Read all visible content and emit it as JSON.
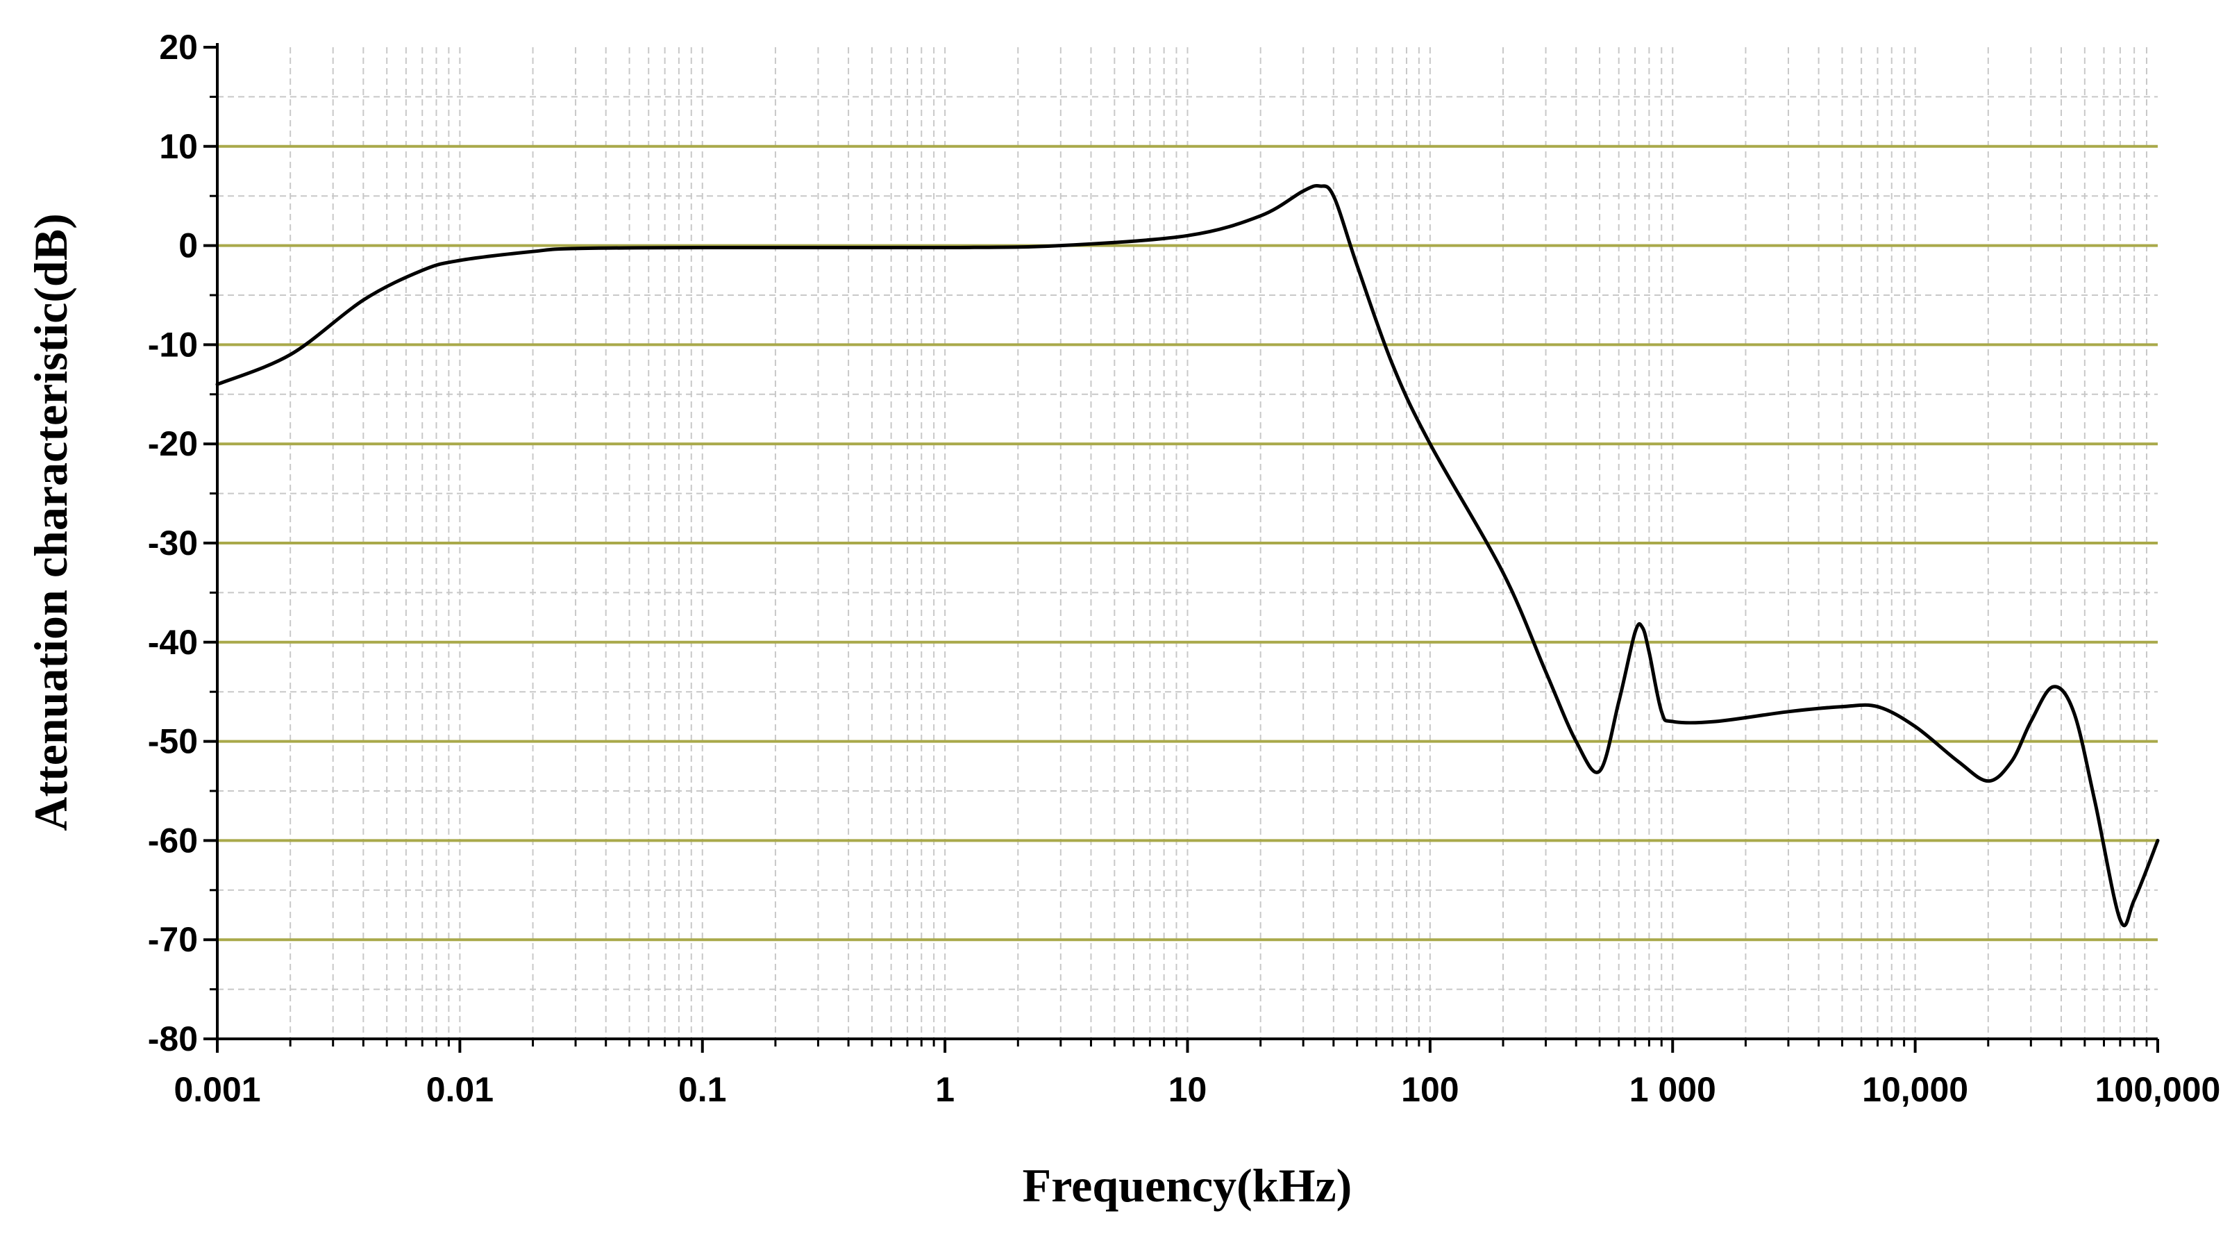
{
  "chart_data": {
    "type": "line",
    "title": "",
    "xlabel": "Frequency(kHz)",
    "ylabel": "Attenuation characteristic(dB)",
    "x_scale": "log",
    "xlim": [
      0.001,
      100000
    ],
    "ylim": [
      -80,
      20
    ],
    "x_tick_values": [
      0.001,
      0.01,
      0.1,
      1,
      10,
      100,
      1000,
      10000,
      100000
    ],
    "x_tick_labels": [
      "0.001",
      "0.01",
      "0.1",
      "1",
      "10",
      "100",
      "1 000",
      "10,000",
      "100,000"
    ],
    "y_tick_values": [
      20,
      10,
      0,
      -10,
      -20,
      -30,
      -40,
      -50,
      -60,
      -70,
      -80
    ],
    "y_tick_labels": [
      "20",
      "10",
      "0",
      "-10",
      "-20",
      "-30",
      "-40",
      "-50",
      "-60",
      "-70",
      "-80"
    ],
    "grid": {
      "major_horizontal": true,
      "minor_horizontal_dashed": true,
      "vertical_dashed": true,
      "major_color": "#a9a94a",
      "minor_color": "#c8c8c8"
    },
    "legend": "none",
    "series": [
      {
        "color": "#000000",
        "x": [
          0.001,
          0.002,
          0.004,
          0.007,
          0.01,
          0.02,
          0.03,
          0.1,
          1,
          3,
          10,
          20,
          30,
          35,
          40,
          50,
          70,
          100,
          200,
          300,
          400,
          500,
          600,
          700,
          750,
          800,
          900,
          1000,
          1500,
          3000,
          5000,
          7000,
          10000,
          15000,
          20000,
          25000,
          30000,
          37000,
          45000,
          55000,
          70000,
          80000,
          100000
        ],
        "y": [
          -14,
          -11,
          -5.5,
          -2.5,
          -1.5,
          -0.6,
          -0.3,
          -0.2,
          -0.2,
          0,
          1,
          3,
          5.5,
          6,
          5,
          -2,
          -12,
          -20,
          -33,
          -43,
          -50,
          -53,
          -46,
          -39,
          -38.5,
          -41,
          -47,
          -48,
          -48,
          -47,
          -46.5,
          -46.5,
          -48.5,
          -52,
          -54,
          -52,
          -48,
          -44.5,
          -47,
          -56,
          -68,
          -66,
          -60
        ]
      }
    ]
  }
}
